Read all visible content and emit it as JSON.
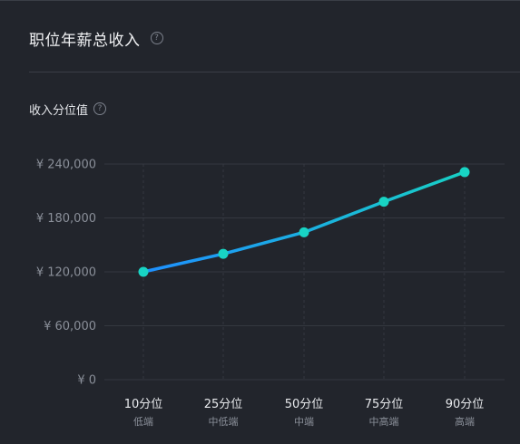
{
  "header": {
    "title": "职位年薪总收入",
    "help_glyph": "?"
  },
  "section": {
    "subtitle": "收入分位值",
    "help_glyph": "?"
  },
  "colors": {
    "line_start": "#1e8fff",
    "line_end": "#18cfc4",
    "point": "#18d4c4",
    "grid": "#343840"
  },
  "chart_data": {
    "type": "line",
    "categories": [
      "10分位",
      "25分位",
      "50分位",
      "75分位",
      "90分位"
    ],
    "category_sublabels": [
      "低端",
      "中低端",
      "中端",
      "中高端",
      "高端"
    ],
    "values": [
      120000,
      140000,
      164000,
      198000,
      231000
    ],
    "yticks": [
      0,
      60000,
      120000,
      180000,
      240000
    ],
    "ytick_labels": [
      "¥ 0",
      "¥ 60,000",
      "¥ 120,000",
      "¥ 180,000",
      "¥ 240,000"
    ],
    "ylim": [
      0,
      240000
    ],
    "grid": true
  }
}
